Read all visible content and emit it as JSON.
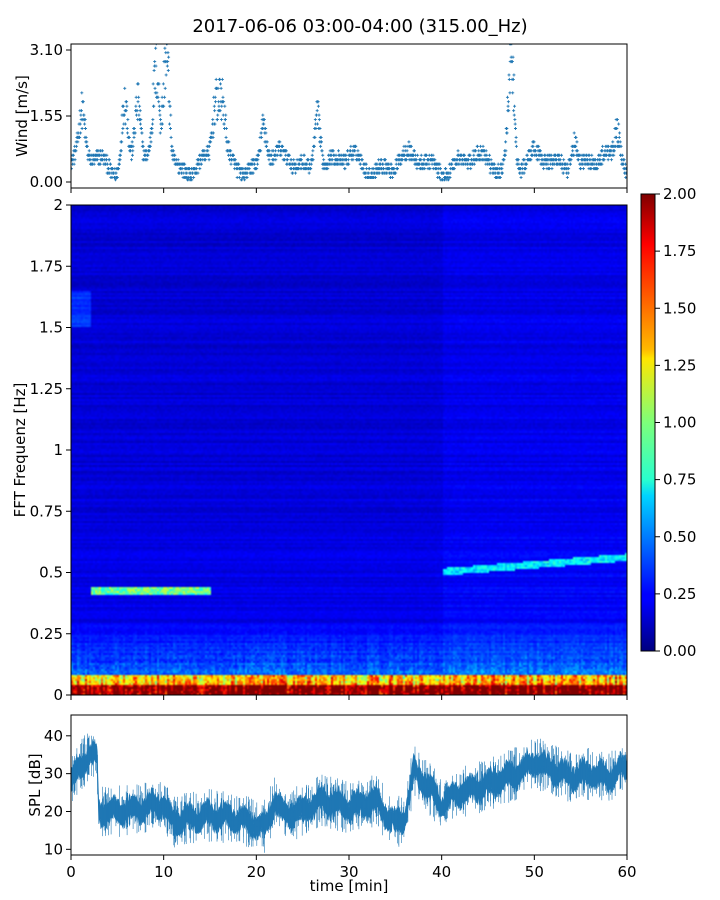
{
  "title": "2017-06-06 03:00-04:00 (315.00_Hz)",
  "chart_data": [
    {
      "id": "wind",
      "type": "scatter",
      "ylabel": "Wind [m/s]",
      "yticks": [
        "0.00",
        "1.55",
        "3.10"
      ],
      "ytick_values": [
        0.0,
        1.55,
        3.1
      ],
      "ylim": [
        0,
        3.1
      ],
      "xlim": [
        0,
        60
      ],
      "marker_color": "#1f77b4",
      "quantization_step": 0.1,
      "peaks": [
        {
          "x": 1.2,
          "y": 1.55
        },
        {
          "x": 5.8,
          "y": 2.1
        },
        {
          "x": 7.2,
          "y": 2.0
        },
        {
          "x": 9.2,
          "y": 2.4
        },
        {
          "x": 10.3,
          "y": 3.1
        },
        {
          "x": 15.6,
          "y": 1.8
        },
        {
          "x": 16.3,
          "y": 1.8
        },
        {
          "x": 20.8,
          "y": 1.55
        },
        {
          "x": 26.6,
          "y": 1.9
        },
        {
          "x": 47.5,
          "y": 3.1
        },
        {
          "x": 54.3,
          "y": 1.3
        },
        {
          "x": 59.0,
          "y": 1.3
        }
      ]
    },
    {
      "id": "spectrogram",
      "type": "heatmap",
      "ylabel": "FFT Frequenz [Hz]",
      "yticks": [
        "0",
        "0.25",
        "0.5",
        "0.75",
        "1",
        "1.25",
        "1.5",
        "1.75",
        "2"
      ],
      "ytick_values": [
        0,
        0.25,
        0.5,
        0.75,
        1,
        1.25,
        1.5,
        1.75,
        2
      ],
      "ylim": [
        0,
        2
      ],
      "xlim": [
        0,
        60
      ],
      "colormap": "jet",
      "colorbar": {
        "ticks": [
          "0.00",
          "0.25",
          "0.50",
          "0.75",
          "1.00",
          "1.25",
          "1.50",
          "1.75",
          "2.00"
        ],
        "tick_values": [
          0,
          0.25,
          0.5,
          0.75,
          1.0,
          1.25,
          1.5,
          1.75,
          2.0
        ],
        "range": [
          0,
          2
        ]
      },
      "features": [
        {
          "label": "low band",
          "freq_max": 0.08,
          "peak_value": 2.0
        },
        {
          "label": "tone",
          "x_range": [
            2,
            15
          ],
          "freq": 0.42,
          "value": 1.2
        },
        {
          "label": "rising tone",
          "x_range": [
            40,
            60
          ],
          "freq_range": [
            0.5,
            0.56
          ],
          "value": 0.8
        }
      ]
    },
    {
      "id": "spl",
      "type": "line",
      "ylabel": "SPL [dB]",
      "xlabel": "time [min]",
      "yticks": [
        "10",
        "20",
        "30",
        "40"
      ],
      "ytick_values": [
        10,
        20,
        30,
        40
      ],
      "ylim": [
        8.5,
        45.5
      ],
      "xticks": [
        "0",
        "10",
        "20",
        "30",
        "40",
        "50",
        "60"
      ],
      "xtick_values": [
        0,
        10,
        20,
        30,
        40,
        50,
        60
      ],
      "xlim": [
        0,
        60
      ],
      "line_color": "#1f77b4",
      "x": [
        0,
        1,
        2,
        2.8,
        3,
        5,
        8,
        10,
        11,
        12,
        15,
        18,
        21,
        22,
        23,
        25,
        27,
        30,
        33,
        34,
        35,
        36,
        37,
        38,
        40,
        42,
        45,
        48,
        50,
        52,
        54,
        56,
        58,
        60
      ],
      "values": [
        28,
        32,
        35,
        34,
        20,
        20,
        21,
        22,
        17,
        18,
        19,
        18,
        16,
        23,
        19,
        20,
        23,
        21,
        23,
        19,
        17,
        18,
        31,
        28,
        22,
        25,
        27,
        30,
        33,
        31,
        29,
        30,
        29,
        32
      ]
    }
  ]
}
